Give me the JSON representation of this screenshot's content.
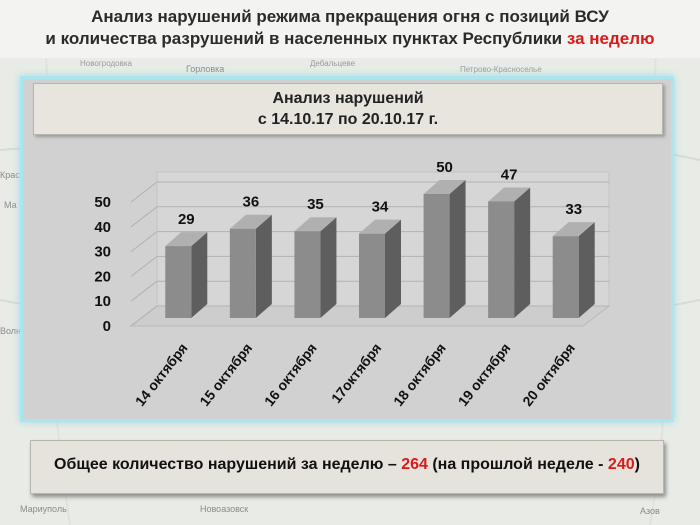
{
  "header": {
    "line1": "Анализ нарушений режима прекращения огня с позиций ВСУ",
    "line2_prefix": "и количества разрушений в населенных пунктах Республики ",
    "line2_highlight": "за неделю"
  },
  "chart_panel": {
    "title_line1": "Анализ нарушений",
    "title_line2": "с 14.10.17 по 20.10.17 г."
  },
  "chart_data": {
    "type": "bar",
    "title": "Анализ нарушений с 14.10.17 по 20.10.17 г.",
    "categories": [
      "14 октября",
      "15 октября",
      "16 октября",
      "17октября",
      "18 октября",
      "19 октября",
      "20 октября"
    ],
    "values": [
      29,
      36,
      35,
      34,
      50,
      47,
      33
    ],
    "ylim": [
      0,
      50
    ],
    "yticks": [
      0,
      10,
      20,
      30,
      40,
      50
    ],
    "grid": true,
    "xlabel": "",
    "ylabel": ""
  },
  "summary": {
    "prefix": "Общее количество нарушений за неделю – ",
    "total": "264",
    "middle": " (на прошлой неделе - ",
    "previous": "240",
    "suffix": ")"
  },
  "map_labels": [
    "Горловка",
    "Новогродовка",
    "Дебальцеве",
    "Петрово-Красноселье",
    "Мариуполь",
    "Новоазовск",
    "Азов",
    "Волн",
    "Крас",
    "Ма"
  ],
  "colors": {
    "accent_red": "#d91a1a",
    "frame_glow": "#a9e6f0",
    "bar_face": "#8c8c8c",
    "bar_side": "#5e5e5e",
    "bar_top": "#b0b0b0"
  }
}
